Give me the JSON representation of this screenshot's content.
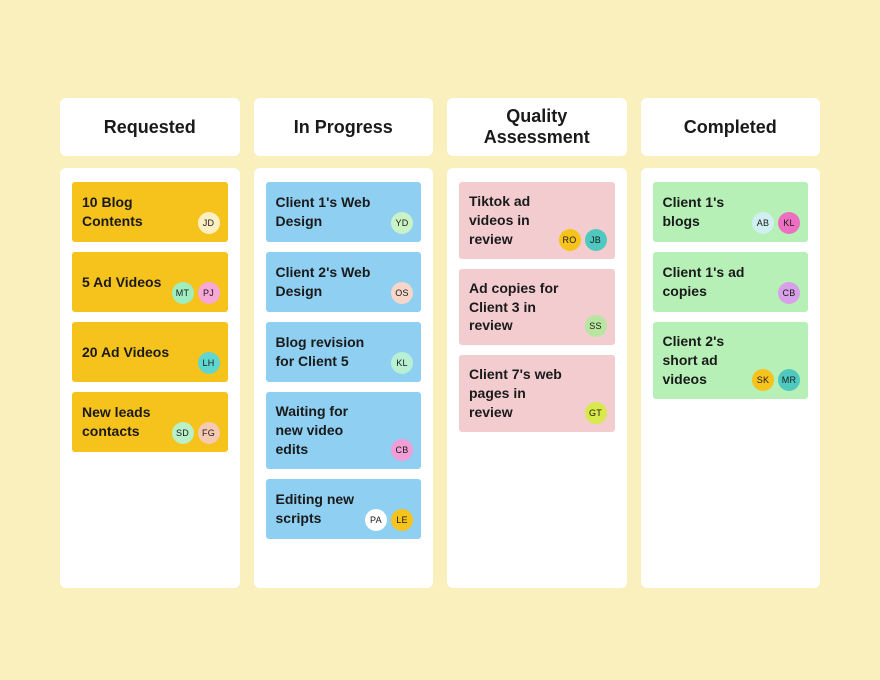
{
  "board": {
    "background_color": "#f9f0bd",
    "column_bg": "#ffffff",
    "header_bg": "#ffffff",
    "card_border_radius": 3,
    "avatar_size": 22,
    "columns": [
      {
        "title": "Requested",
        "card_bg": "#f6c21c",
        "cards": [
          {
            "title": "10 Blog Contents",
            "assignees": [
              {
                "initials": "JD",
                "bg": "#fcefc4"
              }
            ]
          },
          {
            "title": "5 Ad Videos",
            "assignees": [
              {
                "initials": "MT",
                "bg": "#a0eec0"
              },
              {
                "initials": "PJ",
                "bg": "#f7a8d8"
              }
            ]
          },
          {
            "title": "20 Ad Videos",
            "assignees": [
              {
                "initials": "LH",
                "bg": "#5fd6cf"
              }
            ]
          },
          {
            "title": "New leads contacts",
            "assignees": [
              {
                "initials": "SD",
                "bg": "#b8f0c8"
              },
              {
                "initials": "FG",
                "bg": "#f6c9b3"
              }
            ]
          }
        ]
      },
      {
        "title": "In Progress",
        "card_bg": "#8ecff2",
        "cards": [
          {
            "title": "Client 1's Web Design",
            "assignees": [
              {
                "initials": "YD",
                "bg": "#c9f2c5"
              }
            ]
          },
          {
            "title": "Client 2's Web Design",
            "assignees": [
              {
                "initials": "OS",
                "bg": "#f6d6c9"
              }
            ]
          },
          {
            "title": "Blog revision for Client 5",
            "assignees": [
              {
                "initials": "KL",
                "bg": "#b8f0d4"
              }
            ]
          },
          {
            "title": "Waiting for new video edits",
            "assignees": [
              {
                "initials": "CB",
                "bg": "#f29ed6"
              }
            ]
          },
          {
            "title": "Editing new scripts",
            "assignees": [
              {
                "initials": "PA",
                "bg": "#ffffff"
              },
              {
                "initials": "LE",
                "bg": "#f6c21c"
              }
            ]
          }
        ]
      },
      {
        "title": "Quality Assessment",
        "card_bg": "#f3ccd0",
        "cards": [
          {
            "title": "Tiktok ad videos in review",
            "assignees": [
              {
                "initials": "RO",
                "bg": "#f6c21c"
              },
              {
                "initials": "JB",
                "bg": "#4fc9c0"
              }
            ]
          },
          {
            "title": "Ad copies for Client 3 in review",
            "assignees": [
              {
                "initials": "SS",
                "bg": "#b8e6a0"
              }
            ]
          },
          {
            "title": "Client 7's web pages in review",
            "assignees": [
              {
                "initials": "GT",
                "bg": "#d9e84a"
              }
            ]
          }
        ]
      },
      {
        "title": "Completed",
        "card_bg": "#b6f0b6",
        "cards": [
          {
            "title": "Client 1's blogs",
            "assignees": [
              {
                "initials": "AB",
                "bg": "#cfeff0"
              },
              {
                "initials": "KL",
                "bg": "#ed6fc1"
              }
            ]
          },
          {
            "title": "Client 1's ad copies",
            "assignees": [
              {
                "initials": "CB",
                "bg": "#d8a0e8"
              }
            ]
          },
          {
            "title": "Client 2's short ad videos",
            "assignees": [
              {
                "initials": "SK",
                "bg": "#f6c21c"
              },
              {
                "initials": "MR",
                "bg": "#4fc9c0"
              }
            ]
          }
        ]
      }
    ]
  }
}
